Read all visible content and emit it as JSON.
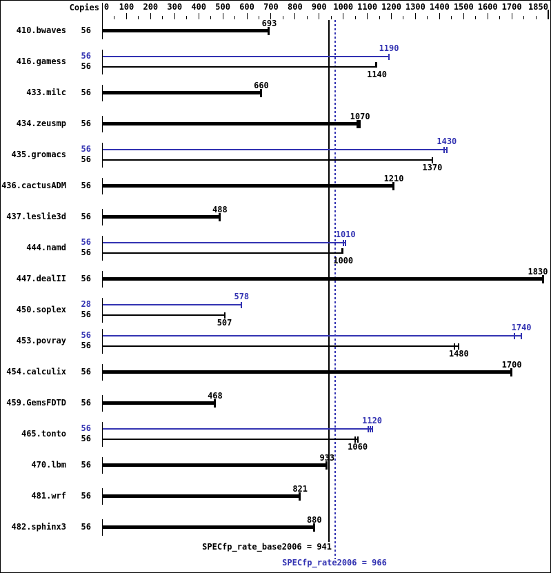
{
  "colors": {
    "base": "#000000",
    "peak": "#3333b2",
    "background": "#ffffff"
  },
  "header": {
    "copies_label": "Copies"
  },
  "footer": {
    "base_label": "SPECfp_rate_base2006 = 941",
    "peak_label": "SPECfp_rate2006 = 966"
  },
  "chart_data": {
    "type": "bar",
    "orientation": "horizontal",
    "xlim": [
      0,
      1850
    ],
    "axis": {
      "major_tick_step": 100,
      "minor_tick_step": 50,
      "tick_labels": [
        "0",
        "100",
        "200",
        "300",
        "400",
        "500",
        "600",
        "700",
        "800",
        "900",
        "1000",
        "1100",
        "1200",
        "1300",
        "1400",
        "1500",
        "1600",
        "1700",
        "1850"
      ]
    },
    "reference_lines": [
      {
        "name": "base_result",
        "value": 941,
        "style": "solid",
        "color": "#000000"
      },
      {
        "name": "peak_result",
        "value": 966,
        "style": "dotted",
        "color": "#3333b2"
      }
    ],
    "copies_header": "Copies",
    "benchmarks": [
      {
        "name": "410.bwaves",
        "bars": [
          {
            "kind": "base",
            "copies": 56,
            "value": 693,
            "marks": 1,
            "spread": 4,
            "block": false
          }
        ]
      },
      {
        "name": "416.gamess",
        "bars": [
          {
            "kind": "peak",
            "copies": 56,
            "value": 1190,
            "marks": 1,
            "spread": 4,
            "block": false
          },
          {
            "kind": "base",
            "copies": 56,
            "value": 1140,
            "marks": 1,
            "spread": 4,
            "block": true
          }
        ]
      },
      {
        "name": "433.milc",
        "bars": [
          {
            "kind": "base",
            "copies": 56,
            "value": 660,
            "marks": 1,
            "spread": 4,
            "block": false
          }
        ]
      },
      {
        "name": "434.zeusmp",
        "bars": [
          {
            "kind": "base",
            "copies": 56,
            "value": 1070,
            "marks": 2,
            "spread": 3,
            "block": false
          }
        ]
      },
      {
        "name": "435.gromacs",
        "bars": [
          {
            "kind": "peak",
            "copies": 56,
            "value": 1430,
            "marks": 2,
            "spread": 4,
            "block": false
          },
          {
            "kind": "base",
            "copies": 56,
            "value": 1370,
            "marks": 1,
            "spread": 4,
            "block": false
          }
        ]
      },
      {
        "name": "436.cactusADM",
        "bars": [
          {
            "kind": "base",
            "copies": 56,
            "value": 1210,
            "marks": 1,
            "spread": 4,
            "block": false
          }
        ]
      },
      {
        "name": "437.leslie3d",
        "bars": [
          {
            "kind": "base",
            "copies": 56,
            "value": 488,
            "marks": 1,
            "spread": 4,
            "block": false
          }
        ]
      },
      {
        "name": "444.namd",
        "bars": [
          {
            "kind": "peak",
            "copies": 56,
            "value": 1010,
            "marks": 2,
            "spread": 3,
            "block": false
          },
          {
            "kind": "base",
            "copies": 56,
            "value": 1000,
            "marks": 1,
            "spread": 4,
            "block": true
          }
        ]
      },
      {
        "name": "447.dealII",
        "bars": [
          {
            "kind": "base",
            "copies": 56,
            "value": 1830,
            "marks": 1,
            "spread": 4,
            "block": false
          }
        ]
      },
      {
        "name": "450.soplex",
        "bars": [
          {
            "kind": "peak",
            "copies": 28,
            "value": 578,
            "marks": 1,
            "spread": 4,
            "block": false
          },
          {
            "kind": "base",
            "copies": 56,
            "value": 507,
            "marks": 1,
            "spread": 4,
            "block": false
          }
        ]
      },
      {
        "name": "453.povray",
        "bars": [
          {
            "kind": "peak",
            "copies": 56,
            "value": 1740,
            "marks": 2,
            "spread": 10,
            "block": false
          },
          {
            "kind": "base",
            "copies": 56,
            "value": 1480,
            "marks": 2,
            "spread": 6,
            "block": false
          }
        ]
      },
      {
        "name": "454.calculix",
        "bars": [
          {
            "kind": "base",
            "copies": 56,
            "value": 1700,
            "marks": 1,
            "spread": 4,
            "block": false
          }
        ]
      },
      {
        "name": "459.GemsFDTD",
        "bars": [
          {
            "kind": "base",
            "copies": 56,
            "value": 468,
            "marks": 1,
            "spread": 4,
            "block": false
          }
        ]
      },
      {
        "name": "465.tonto",
        "bars": [
          {
            "kind": "peak",
            "copies": 56,
            "value": 1120,
            "marks": 3,
            "spread": 3,
            "block": false
          },
          {
            "kind": "base",
            "copies": 56,
            "value": 1060,
            "marks": 2,
            "spread": 4,
            "block": false
          }
        ]
      },
      {
        "name": "470.lbm",
        "bars": [
          {
            "kind": "base",
            "copies": 56,
            "value": 933,
            "marks": 1,
            "spread": 4,
            "block": false
          }
        ]
      },
      {
        "name": "481.wrf",
        "bars": [
          {
            "kind": "base",
            "copies": 56,
            "value": 821,
            "marks": 1,
            "spread": 4,
            "block": false
          }
        ]
      },
      {
        "name": "482.sphinx3",
        "bars": [
          {
            "kind": "base",
            "copies": 56,
            "value": 880,
            "marks": 1,
            "spread": 4,
            "block": false
          }
        ]
      }
    ],
    "base_result": 941,
    "peak_result": 966
  }
}
